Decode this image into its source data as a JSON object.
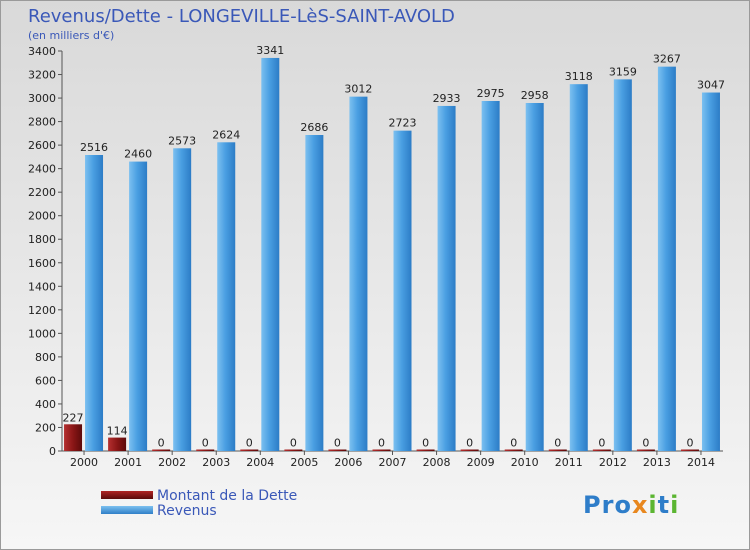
{
  "chart_data": {
    "type": "bar",
    "title": "Revenus/Dette - LONGEVILLE-LèS-SAINT-AVOLD",
    "subtitle": "(en milliers d'€)",
    "categories": [
      "2000",
      "2001",
      "2002",
      "2003",
      "2004",
      "2005",
      "2006",
      "2007",
      "2008",
      "2009",
      "2010",
      "2011",
      "2012",
      "2013",
      "2014"
    ],
    "series": [
      {
        "name": "Montant de la Dette",
        "color": "#7a1212",
        "values": [
          227,
          114,
          0,
          0,
          0,
          0,
          0,
          0,
          0,
          0,
          0,
          0,
          0,
          0,
          0
        ]
      },
      {
        "name": "Revenus",
        "color": "#3d8fd8",
        "values": [
          2516,
          2460,
          2573,
          2624,
          3341,
          2686,
          3012,
          2723,
          2933,
          2975,
          2958,
          3118,
          3159,
          3267,
          3047
        ]
      }
    ],
    "ylim": [
      0,
      3400
    ],
    "ytick_step": 200,
    "grid": false,
    "legend_position": "bottom-left"
  },
  "logo": {
    "letters": [
      {
        "ch": "P",
        "color": "#2e7dc9"
      },
      {
        "ch": "r",
        "color": "#2e7dc9"
      },
      {
        "ch": "o",
        "color": "#2e7dc9"
      },
      {
        "ch": "x",
        "color": "#e8871e"
      },
      {
        "ch": "i",
        "color": "#5bb531"
      },
      {
        "ch": "t",
        "color": "#2e7dc9"
      },
      {
        "ch": "i",
        "color": "#5bb531"
      }
    ]
  }
}
